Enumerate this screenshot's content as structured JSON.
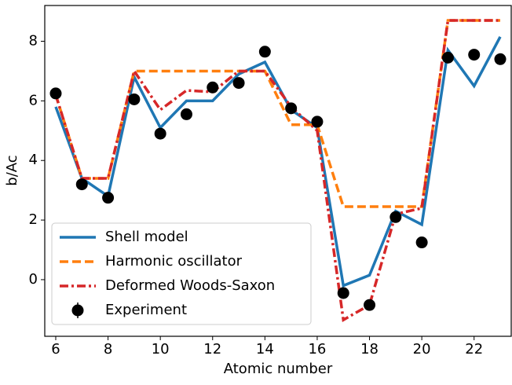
{
  "chart_data": {
    "type": "line",
    "xlabel": "Atomic number",
    "ylabel": "b/Ac",
    "x": [
      6,
      7,
      8,
      9,
      10,
      11,
      12,
      13,
      14,
      15,
      16,
      17,
      18,
      19,
      20,
      21,
      22,
      23
    ],
    "series": [
      {
        "name": "Shell model",
        "color": "#1f77b4",
        "style": "solid",
        "values": [
          5.8,
          3.4,
          2.8,
          6.8,
          5.1,
          6.0,
          6.0,
          6.9,
          7.3,
          5.7,
          5.1,
          -0.2,
          0.15,
          2.3,
          1.85,
          7.7,
          6.5,
          8.15
        ]
      },
      {
        "name": "Harmonic oscillator",
        "color": "#ff7f0e",
        "style": "dashed",
        "values": [
          6.2,
          3.4,
          3.4,
          7.0,
          7.0,
          7.0,
          7.0,
          7.0,
          7.0,
          5.2,
          5.2,
          2.45,
          2.45,
          2.45,
          2.45,
          8.7,
          8.7,
          8.7
        ]
      },
      {
        "name": "Deformed Woods-Saxon",
        "color": "#d62728",
        "style": "dashdot",
        "values": [
          6.2,
          3.4,
          3.4,
          7.0,
          5.7,
          6.35,
          6.3,
          7.0,
          7.0,
          5.8,
          5.0,
          -1.35,
          -0.85,
          2.2,
          2.4,
          8.7,
          8.7,
          8.7
        ]
      }
    ],
    "points": {
      "name": "Experiment",
      "color": "#000000",
      "values": [
        6.25,
        3.2,
        2.75,
        6.05,
        4.9,
        5.55,
        6.45,
        6.6,
        7.65,
        5.75,
        5.3,
        -0.45,
        -0.85,
        2.1,
        1.25,
        7.45,
        7.55,
        7.4
      ]
    },
    "xlim": [
      5.58,
      23.42
    ],
    "ylim": [
      -1.9,
      9.2
    ],
    "xticks": [
      6,
      8,
      10,
      12,
      14,
      16,
      18,
      20,
      22
    ],
    "yticks": [
      0,
      2,
      4,
      6,
      8
    ],
    "legend": "lower left"
  }
}
